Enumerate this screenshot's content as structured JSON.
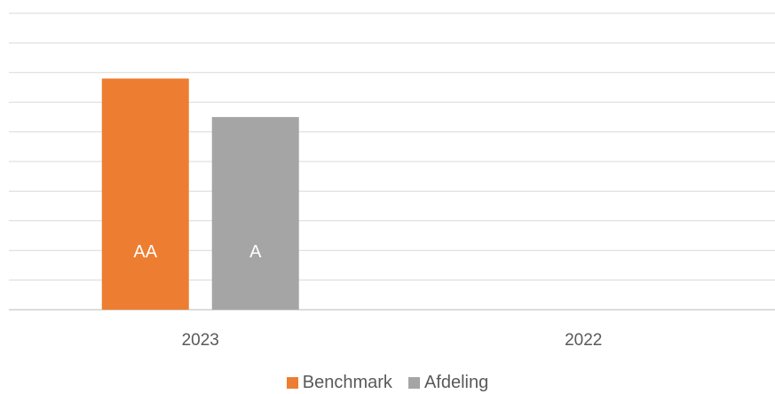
{
  "chart_data": {
    "type": "bar",
    "categories": [
      "2023",
      "2022"
    ],
    "series": [
      {
        "name": "Benchmark",
        "color": "#ED7D31",
        "values": [
          7.8,
          null
        ],
        "data_labels": [
          "AA",
          ""
        ]
      },
      {
        "name": "Afdeling",
        "color": "#A5A5A5",
        "values": [
          6.5,
          null
        ],
        "data_labels": [
          "A",
          ""
        ]
      }
    ],
    "ylim": [
      0,
      10
    ],
    "grid": true,
    "legend_position": "bottom"
  }
}
